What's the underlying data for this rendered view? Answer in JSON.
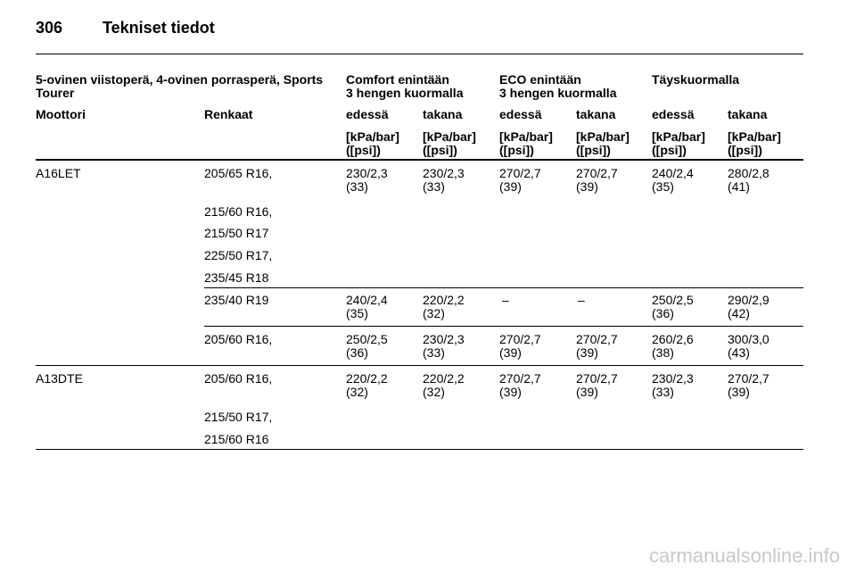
{
  "page": {
    "number": "306",
    "title": "Tekniset tiedot"
  },
  "table": {
    "group_header": {
      "label_line1": "5-ovinen viistoperä, 4-ovinen porrasperä, Sports",
      "label_line2": "Tourer",
      "comfort_line1": "Comfort enintään",
      "comfort_line2": "3 hengen kuormalla",
      "eco_line1": "ECO enintään",
      "eco_line2": "3 hengen kuormalla",
      "full_load": "Täyskuormalla"
    },
    "column_headers": {
      "engine": "Moottori",
      "tyres": "Renkaat",
      "comfort_front": "edessä",
      "comfort_rear": "takana",
      "eco_front": "edessä",
      "eco_rear": "takana",
      "full_front": "edessä",
      "full_rear": "takana"
    },
    "unit_line1": "[kPa/bar]",
    "unit_line2": "([psi])",
    "groups": [
      {
        "engine": "A16LET",
        "tyres": [
          "205/65 R16,",
          "215/60 R16,",
          "215/50 R17",
          "225/50 R17,",
          "235/45 R18"
        ],
        "values": [
          {
            "bar": "230/2,3",
            "psi": "(33)"
          },
          {
            "bar": "230/2,3",
            "psi": "(33)"
          },
          {
            "bar": "270/2,7",
            "psi": "(39)"
          },
          {
            "bar": "270/2,7",
            "psi": "(39)"
          },
          {
            "bar": "240/2,4",
            "psi": "(35)"
          },
          {
            "bar": "280/2,8",
            "psi": "(41)"
          }
        ]
      },
      {
        "engine": "",
        "tyres": [
          "235/40 R19"
        ],
        "values": [
          {
            "bar": "240/2,4",
            "psi": "(35)"
          },
          {
            "bar": "220/2,2",
            "psi": "(32)"
          },
          {
            "bar": "–",
            "psi": ""
          },
          {
            "bar": "–",
            "psi": ""
          },
          {
            "bar": "250/2,5",
            "psi": "(36)"
          },
          {
            "bar": "290/2,9",
            "psi": "(42)"
          }
        ]
      },
      {
        "engine": "",
        "tyres": [
          "205/60 R16,"
        ],
        "values": [
          {
            "bar": "250/2,5",
            "psi": "(36)"
          },
          {
            "bar": "230/2,3",
            "psi": "(33)"
          },
          {
            "bar": "270/2,7",
            "psi": "(39)"
          },
          {
            "bar": "270/2,7",
            "psi": "(39)"
          },
          {
            "bar": "260/2,6",
            "psi": "(38)"
          },
          {
            "bar": "300/3,0",
            "psi": "(43)"
          }
        ]
      },
      {
        "engine": "A13DTE",
        "tyres": [
          "205/60 R16,",
          "215/50 R17,",
          "215/60 R16"
        ],
        "values": [
          {
            "bar": "220/2,2",
            "psi": "(32)"
          },
          {
            "bar": "220/2,2",
            "psi": "(32)"
          },
          {
            "bar": "270/2,7",
            "psi": "(39)"
          },
          {
            "bar": "270/2,7",
            "psi": "(39)"
          },
          {
            "bar": "230/2,3",
            "psi": "(33)"
          },
          {
            "bar": "270/2,7",
            "psi": "(39)"
          }
        ]
      }
    ]
  },
  "watermark": "carmanualsonline.info"
}
